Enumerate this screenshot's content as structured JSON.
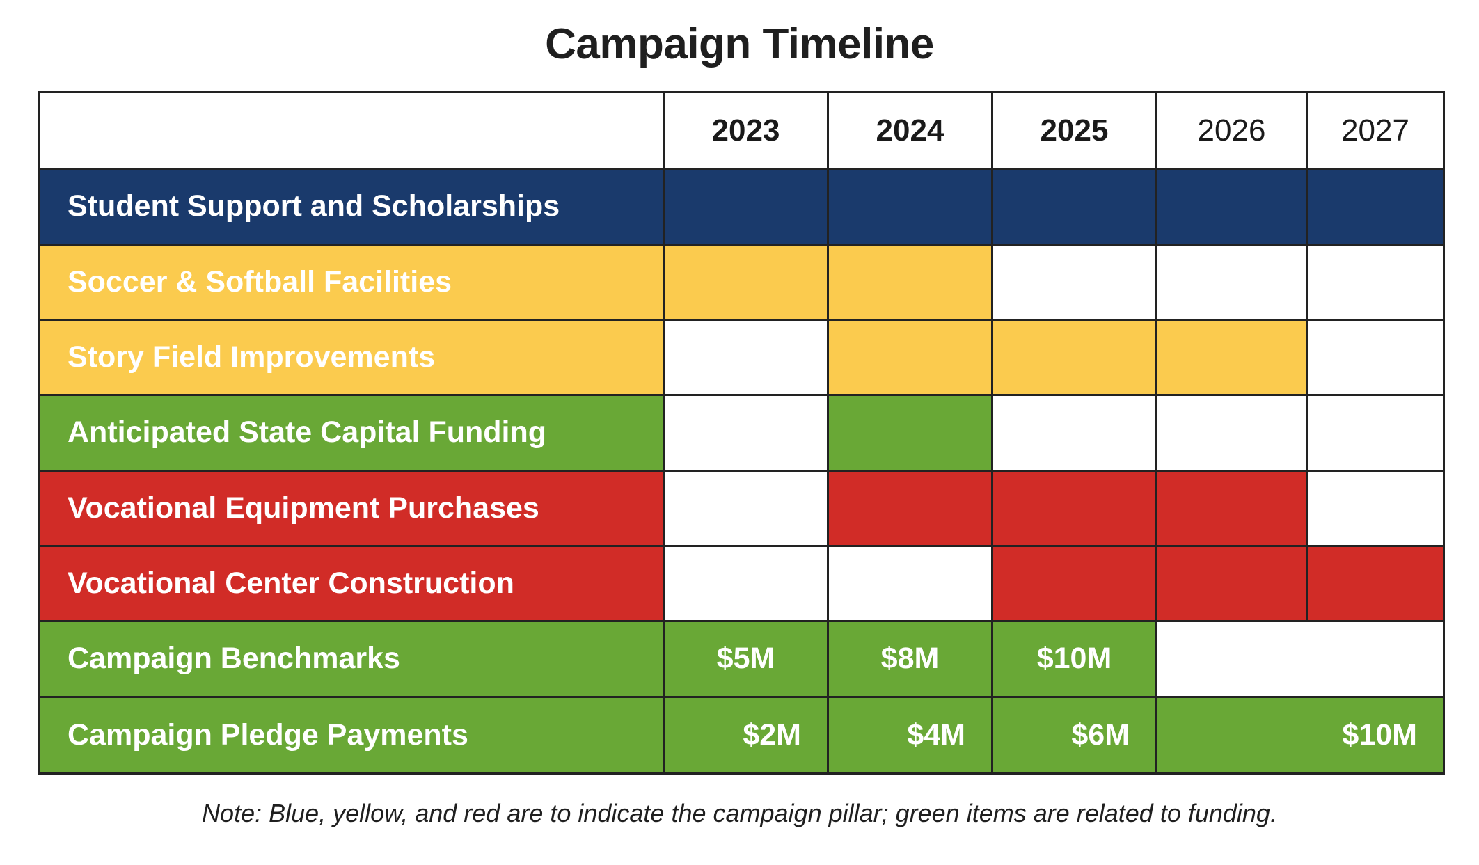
{
  "title": "Campaign Timeline",
  "years": [
    "2023",
    "2024",
    "2025",
    "2026",
    "2027"
  ],
  "colors": {
    "blue": "#1a3a6c",
    "yellow": "#fbcb4e",
    "green": "#69a836",
    "red": "#d12c27",
    "border": "#222222"
  },
  "rows": [
    {
      "label": "Student Support and Scholarships",
      "color": "blue"
    },
    {
      "label": "Soccer & Softball Facilities",
      "color": "yellow"
    },
    {
      "label": "Story Field Improvements",
      "color": "yellow"
    },
    {
      "label": "Anticipated State Capital Funding",
      "color": "green"
    },
    {
      "label": "Vocational Equipment Purchases",
      "color": "red"
    },
    {
      "label": "Vocational Center Construction",
      "color": "red"
    },
    {
      "label": "Campaign Benchmarks",
      "color": "green",
      "values": [
        "$5M",
        "$8M",
        "$10M"
      ]
    },
    {
      "label": "Campaign Pledge Payments",
      "color": "green",
      "values": [
        "$2M",
        "$4M",
        "$6M",
        "$10M"
      ]
    }
  ],
  "note": "Note: Blue, yellow, and red are to indicate the campaign pillar; green items are related to funding."
}
